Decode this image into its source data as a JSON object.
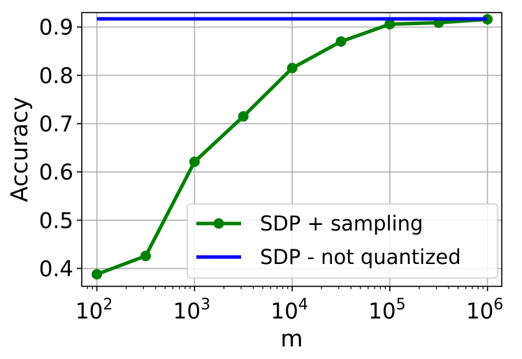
{
  "chart_data": {
    "type": "line",
    "title": "",
    "xlabel": "m",
    "ylabel": "Accuracy",
    "xscale": "log",
    "xlim": [
      70,
      1400000
    ],
    "ylim": [
      0.363,
      0.93
    ],
    "grid": true,
    "legend_position": "lower-right",
    "x_ticks": [
      {
        "value": 100,
        "base": "10",
        "exp": "2"
      },
      {
        "value": 1000,
        "base": "10",
        "exp": "3"
      },
      {
        "value": 10000,
        "base": "10",
        "exp": "4"
      },
      {
        "value": 100000,
        "base": "10",
        "exp": "5"
      },
      {
        "value": 1000000,
        "base": "10",
        "exp": "6"
      }
    ],
    "y_ticks": [
      {
        "value": 0.4,
        "label": "0.4"
      },
      {
        "value": 0.5,
        "label": "0.5"
      },
      {
        "value": 0.6,
        "label": "0.6"
      },
      {
        "value": 0.7,
        "label": "0.7"
      },
      {
        "value": 0.8,
        "label": "0.8"
      },
      {
        "value": 0.9,
        "label": "0.9"
      }
    ],
    "series": [
      {
        "name": "SDP + sampling",
        "color": "#008000",
        "marker": "circle",
        "x": [
          100,
          316,
          1000,
          3162,
          10000,
          31623,
          100000,
          316228,
          1000000
        ],
        "y": [
          0.388,
          0.426,
          0.621,
          0.715,
          0.815,
          0.87,
          0.906,
          0.909,
          0.916
        ]
      },
      {
        "name": "SDP - not quantized",
        "color": "#0000ff",
        "marker": "none",
        "x": [
          100,
          1000000
        ],
        "y": [
          0.917,
          0.917
        ]
      }
    ]
  }
}
